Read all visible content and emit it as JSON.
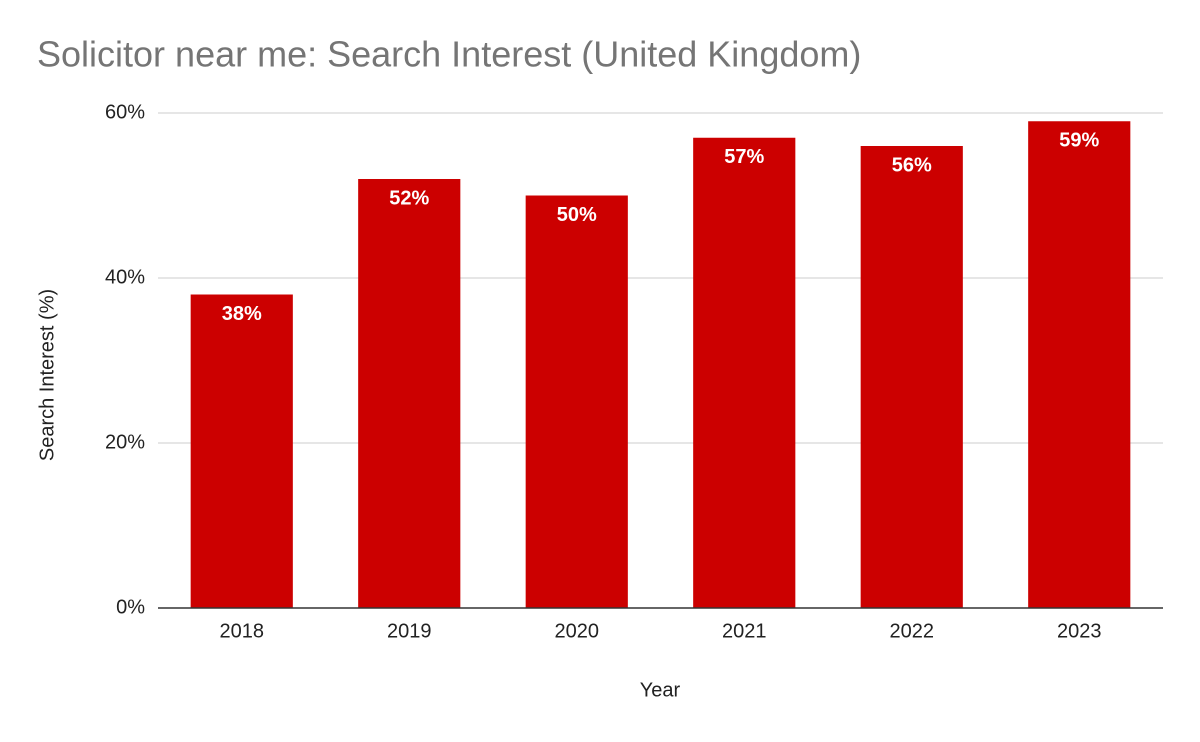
{
  "chart_data": {
    "type": "bar",
    "title": "Solicitor near me: Search Interest (United Kingdom)",
    "x_label": "Year",
    "y_label": "Search Interest (%)",
    "categories": [
      "2018",
      "2019",
      "2020",
      "2021",
      "2022",
      "2023"
    ],
    "values": [
      38,
      52,
      50,
      57,
      56,
      59
    ],
    "value_labels": [
      "38%",
      "52%",
      "50%",
      "57%",
      "56%",
      "59%"
    ],
    "color": "#cc0000",
    "ylim": [
      0,
      60
    ],
    "yticks": [
      {
        "value": 0,
        "label": "0%"
      },
      {
        "value": 20,
        "label": "20%"
      },
      {
        "value": 40,
        "label": "40%"
      },
      {
        "value": 60,
        "label": "60%"
      }
    ],
    "grid": true
  }
}
